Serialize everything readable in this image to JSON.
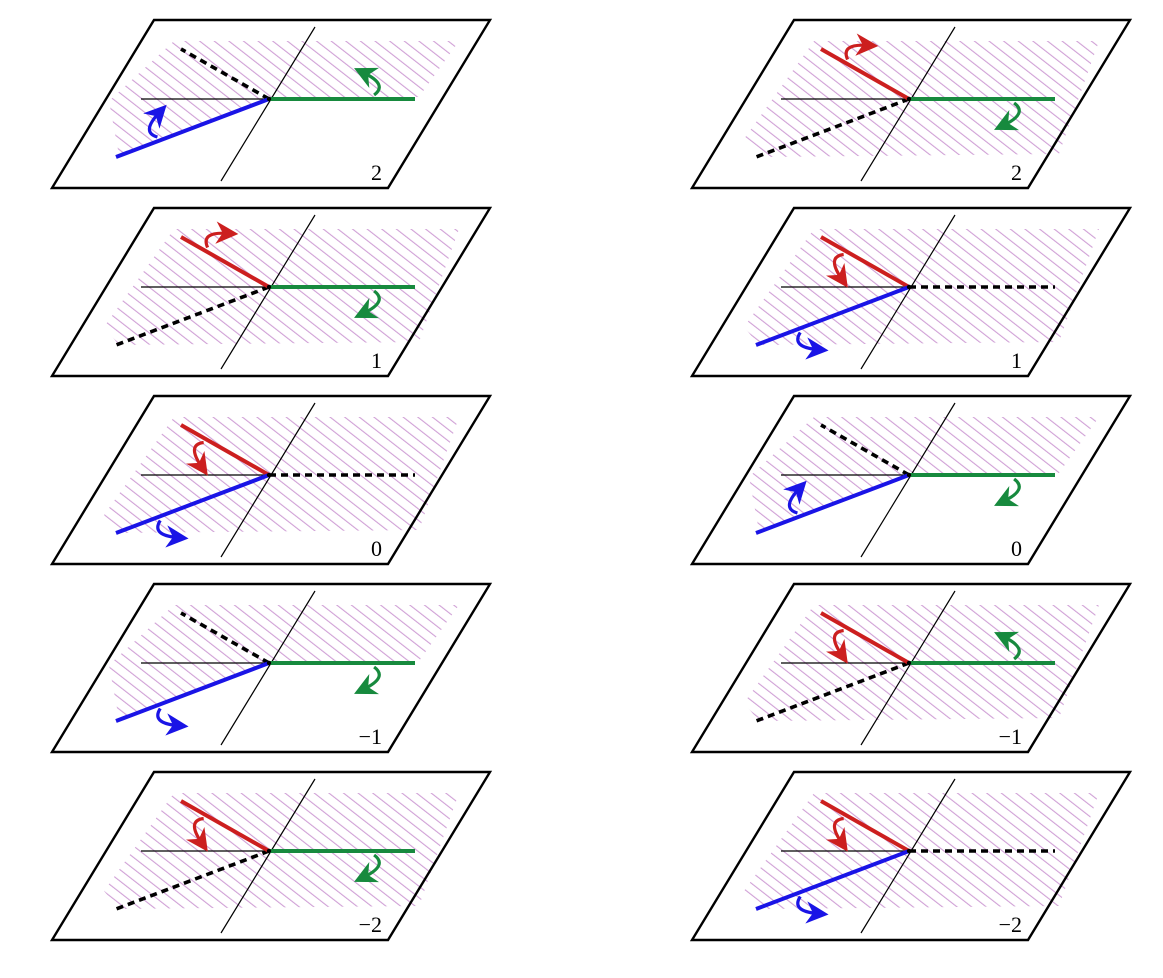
{
  "colors": {
    "red": "#cc1f1f",
    "green": "#178a3e",
    "blue": "#1a14e6",
    "dashed": "#000000",
    "hatch": "#c080c8",
    "frame": "#000000"
  },
  "columns": [
    {
      "name": "left",
      "panels": [
        {
          "label": "2",
          "dashed": "upper",
          "rays": [
            {
              "name": "green",
              "dir": "right",
              "arrow": "ccw"
            },
            {
              "name": "blue",
              "dir": "lower",
              "arrow": "cw"
            }
          ],
          "shade": "left-span"
        },
        {
          "label": "1",
          "dashed": "lower",
          "rays": [
            {
              "name": "red",
              "dir": "upper",
              "arrow": "cw"
            },
            {
              "name": "green",
              "dir": "right",
              "arrow": "cw"
            }
          ],
          "shade": "full"
        },
        {
          "label": "0",
          "dashed": "right",
          "rays": [
            {
              "name": "red",
              "dir": "upper",
              "arrow": "ccw"
            },
            {
              "name": "blue",
              "dir": "lower",
              "arrow": "ccw"
            }
          ],
          "shade": "full"
        },
        {
          "label": "−1",
          "dashed": "upper",
          "rays": [
            {
              "name": "green",
              "dir": "right",
              "arrow": "cw"
            },
            {
              "name": "blue",
              "dir": "lower",
              "arrow": "ccw"
            }
          ],
          "shade": "left-span"
        },
        {
          "label": "−2",
          "dashed": "lower",
          "rays": [
            {
              "name": "red",
              "dir": "upper",
              "arrow": "ccw"
            },
            {
              "name": "green",
              "dir": "right",
              "arrow": "cw"
            }
          ],
          "shade": "full"
        }
      ]
    },
    {
      "name": "right",
      "panels": [
        {
          "label": "2",
          "dashed": "lower",
          "rays": [
            {
              "name": "red",
              "dir": "upper",
              "arrow": "cw"
            },
            {
              "name": "green",
              "dir": "right",
              "arrow": "cw"
            }
          ],
          "shade": "full"
        },
        {
          "label": "1",
          "dashed": "right",
          "rays": [
            {
              "name": "red",
              "dir": "upper",
              "arrow": "ccw"
            },
            {
              "name": "blue",
              "dir": "lower",
              "arrow": "ccw"
            }
          ],
          "shade": "full"
        },
        {
          "label": "0",
          "dashed": "upper",
          "rays": [
            {
              "name": "green",
              "dir": "right",
              "arrow": "cw"
            },
            {
              "name": "blue",
              "dir": "lower",
              "arrow": "cw"
            }
          ],
          "shade": "left-span"
        },
        {
          "label": "−1",
          "dashed": "lower",
          "rays": [
            {
              "name": "red",
              "dir": "upper",
              "arrow": "ccw"
            },
            {
              "name": "green",
              "dir": "right",
              "arrow": "ccw"
            }
          ],
          "shade": "full"
        },
        {
          "label": "−2",
          "dashed": "right",
          "rays": [
            {
              "name": "red",
              "dir": "upper",
              "arrow": "ccw"
            },
            {
              "name": "blue",
              "dir": "lower",
              "arrow": "ccw"
            }
          ],
          "shade": "full"
        }
      ]
    }
  ]
}
